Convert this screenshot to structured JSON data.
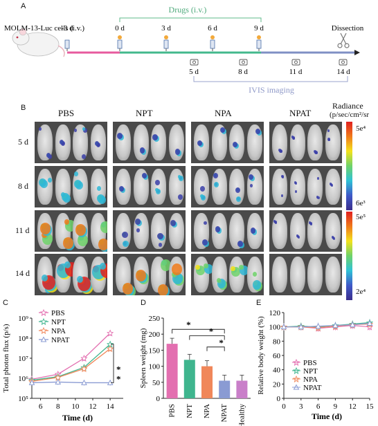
{
  "panel_labels": {
    "a": "A",
    "b": "B",
    "c": "C",
    "d": "D",
    "e": "E"
  },
  "timeline": {
    "cells_label": "MOLM-13-Luc cells (i.v.)",
    "drugs_label": "Drugs (i.v.)",
    "dissection_label": "Dissection",
    "imaging_label": "IVIS imaging",
    "top_days": [
      "-3 d",
      "0 d",
      "3 d",
      "6 d",
      "9 d"
    ],
    "bottom_days": [
      "5 d",
      "8 d",
      "11 d",
      "14 d"
    ],
    "colors": {
      "pre": "#e75a9e",
      "drug": "#43b88c",
      "post": "#7f8fc4",
      "drug_bracket": "#5cb98a",
      "imaging_bracket": "#9aa3cc"
    }
  },
  "imaging": {
    "groups": [
      "PBS",
      "NPT",
      "NPA",
      "NPAT"
    ],
    "days": [
      "5 d",
      "8 d",
      "11 d",
      "14 d"
    ],
    "colorbar_title_1": "Radiance",
    "colorbar_title_2": "(p/sec/cm²/sr",
    "scale1_max": "5e⁴",
    "scale1_min": "6e³",
    "scale2_max": "5e⁵",
    "scale2_min": "2e⁴"
  },
  "chart_data": [
    {
      "type": "line",
      "ylabel": "Total photon flux (p/s)",
      "xlabel": "Time  (d)",
      "x": [
        5,
        8,
        11,
        14
      ],
      "y_scale": "log",
      "ylim": [
        100000,
        1000000000
      ],
      "xticks": [
        "6",
        "8",
        "10",
        "12",
        "14"
      ],
      "yticks": [
        "10⁵",
        "10⁶",
        "10⁷",
        "10⁸",
        "10⁹"
      ],
      "series": [
        {
          "name": "PBS",
          "color": "#e36fb0",
          "values": [
            900000,
            1600000,
            10000000,
            180000000
          ]
        },
        {
          "name": "NPT",
          "color": "#3fb58e",
          "values": [
            800000,
            1200000,
            3500000,
            50000000
          ]
        },
        {
          "name": "NPA",
          "color": "#f0875a",
          "values": [
            700000,
            1100000,
            3000000,
            30000000
          ]
        },
        {
          "name": "NPAT",
          "color": "#8a9bd3",
          "values": [
            600000,
            650000,
            600000,
            600000
          ]
        }
      ],
      "annotations": [
        "*",
        "*"
      ]
    },
    {
      "type": "bar",
      "ylabel": "Spleen weight (mg)",
      "categories": [
        "PBS",
        "NPT",
        "NPA",
        "NPAT",
        "Healthy"
      ],
      "values": [
        170,
        120,
        100,
        55,
        55
      ],
      "colors": [
        "#e36fb0",
        "#3fb58e",
        "#f0875a",
        "#8a9bd3",
        "#c97fc9"
      ],
      "ylim": [
        0,
        250
      ],
      "yticks": [
        "0",
        "50",
        "100",
        "150",
        "200",
        "250"
      ],
      "annotations": [
        "*",
        "*",
        "*"
      ]
    },
    {
      "type": "line",
      "ylabel": "Relative body weight (%)",
      "xlabel": "Time (d)",
      "x": [
        0,
        3,
        6,
        9,
        12,
        15
      ],
      "ylim": [
        0,
        120
      ],
      "xticks": [
        "0",
        "3",
        "6",
        "9",
        "12",
        "15"
      ],
      "yticks": [
        "0",
        "20",
        "40",
        "60",
        "80",
        "100",
        "120"
      ],
      "series": [
        {
          "name": "PBS",
          "color": "#e36fb0",
          "values": [
            100,
            100,
            98,
            100,
            102,
            100
          ]
        },
        {
          "name": "NPT",
          "color": "#3fb58e",
          "values": [
            100,
            101,
            100,
            102,
            104,
            106
          ]
        },
        {
          "name": "NPA",
          "color": "#f0875a",
          "values": [
            100,
            100,
            99,
            101,
            103,
            104
          ]
        },
        {
          "name": "NPAT",
          "color": "#8a9bd3",
          "values": [
            100,
            100,
            101,
            102,
            103,
            105
          ]
        }
      ]
    }
  ]
}
